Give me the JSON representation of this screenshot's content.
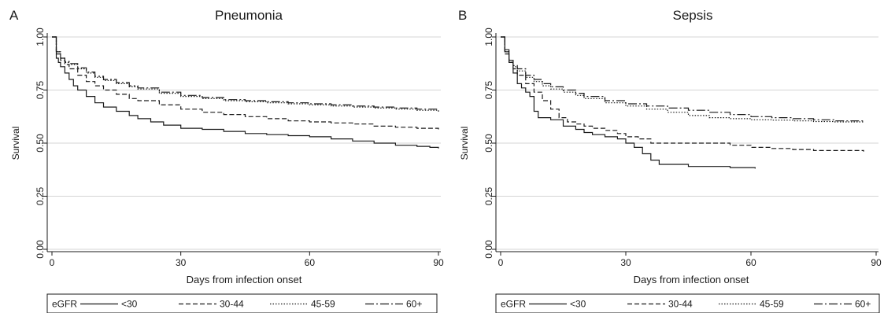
{
  "legend": {
    "title": "eGFR",
    "entries": [
      "<30",
      "30-44",
      "45-59",
      "60+"
    ],
    "dash_styles": [
      "solid",
      "dashed",
      "dotted",
      "longdash-dot"
    ]
  },
  "style": {
    "line_color": "#1a1a1a",
    "grid_color": "#d4d4d4",
    "background": "#ffffff"
  },
  "chart_data": [
    {
      "type": "line",
      "panel_letter": "A",
      "title": "Pneumonia",
      "xlabel": "Days from infection onset",
      "ylabel": "Survival",
      "xlim": [
        0,
        90
      ],
      "ylim": [
        0,
        1
      ],
      "xticks": [
        0,
        30,
        60,
        90
      ],
      "yticks": [
        0,
        0.25,
        0.5,
        0.75,
        1
      ],
      "ytick_labels": [
        "0.00",
        "0.25",
        "0.50",
        "0.75",
        "1.00"
      ],
      "grid": "horizontal",
      "legend_position": "bottom",
      "series": [
        {
          "name": "<30",
          "dash": "solid",
          "x": [
            0,
            1,
            1.5,
            2,
            3,
            4,
            5,
            6,
            8,
            10,
            12,
            15,
            18,
            20,
            23,
            26,
            30,
            35,
            40,
            45,
            50,
            55,
            60,
            65,
            70,
            75,
            80,
            85,
            88,
            90
          ],
          "y": [
            1.0,
            0.9,
            0.88,
            0.86,
            0.83,
            0.8,
            0.77,
            0.75,
            0.72,
            0.69,
            0.67,
            0.65,
            0.63,
            0.615,
            0.6,
            0.585,
            0.57,
            0.565,
            0.555,
            0.545,
            0.54,
            0.535,
            0.53,
            0.52,
            0.51,
            0.5,
            0.49,
            0.485,
            0.48,
            0.475
          ]
        },
        {
          "name": "30-44",
          "dash": "dashed",
          "x": [
            0,
            1,
            2,
            3,
            4,
            6,
            8,
            10,
            12,
            15,
            18,
            20,
            25,
            30,
            35,
            40,
            45,
            50,
            55,
            60,
            65,
            70,
            75,
            80,
            85,
            90
          ],
          "y": [
            1.0,
            0.92,
            0.89,
            0.87,
            0.85,
            0.82,
            0.79,
            0.77,
            0.75,
            0.73,
            0.71,
            0.7,
            0.68,
            0.66,
            0.645,
            0.635,
            0.625,
            0.615,
            0.605,
            0.6,
            0.595,
            0.59,
            0.58,
            0.575,
            0.57,
            0.565
          ]
        },
        {
          "name": "45-59",
          "dash": "dotted",
          "x": [
            0,
            1,
            2,
            3,
            4,
            6,
            8,
            10,
            12,
            15,
            18,
            20,
            25,
            30,
            35,
            40,
            45,
            50,
            55,
            60,
            65,
            70,
            75,
            80,
            85,
            90
          ],
          "y": [
            1.0,
            0.93,
            0.9,
            0.88,
            0.87,
            0.85,
            0.83,
            0.81,
            0.795,
            0.78,
            0.765,
            0.755,
            0.735,
            0.72,
            0.71,
            0.7,
            0.695,
            0.69,
            0.685,
            0.68,
            0.675,
            0.67,
            0.665,
            0.66,
            0.655,
            0.645
          ]
        },
        {
          "name": "60+",
          "dash": "longdash-dot",
          "x": [
            0,
            1,
            2,
            3,
            4,
            6,
            8,
            10,
            12,
            15,
            18,
            20,
            25,
            30,
            35,
            40,
            45,
            50,
            55,
            60,
            65,
            70,
            75,
            80,
            85,
            90
          ],
          "y": [
            1.0,
            0.93,
            0.9,
            0.885,
            0.875,
            0.855,
            0.835,
            0.815,
            0.8,
            0.785,
            0.77,
            0.76,
            0.74,
            0.725,
            0.715,
            0.705,
            0.7,
            0.695,
            0.69,
            0.685,
            0.68,
            0.675,
            0.67,
            0.665,
            0.66,
            0.655
          ]
        }
      ]
    },
    {
      "type": "line",
      "panel_letter": "B",
      "title": "Sepsis",
      "xlabel": "Days from infection onset",
      "ylabel": "Survival",
      "xlim": [
        0,
        90
      ],
      "ylim": [
        0,
        1
      ],
      "xticks": [
        0,
        30,
        60,
        90
      ],
      "yticks": [
        0,
        0.25,
        0.5,
        0.75,
        1
      ],
      "ytick_labels": [
        "0.00",
        "0.25",
        "0.50",
        "0.75",
        "1.00"
      ],
      "grid": "horizontal",
      "legend_position": "bottom",
      "series": [
        {
          "name": "<30",
          "dash": "solid",
          "x": [
            0,
            1,
            2,
            3,
            4,
            5,
            6,
            7,
            8,
            9,
            12,
            15,
            18,
            20,
            22,
            25,
            28,
            30,
            32,
            34,
            36,
            38,
            40,
            45,
            50,
            55,
            61
          ],
          "y": [
            1.0,
            0.93,
            0.88,
            0.83,
            0.78,
            0.76,
            0.74,
            0.72,
            0.65,
            0.62,
            0.61,
            0.58,
            0.565,
            0.55,
            0.54,
            0.53,
            0.52,
            0.5,
            0.48,
            0.45,
            0.42,
            0.4,
            0.4,
            0.39,
            0.39,
            0.385,
            0.38
          ]
        },
        {
          "name": "30-44",
          "dash": "dashed",
          "x": [
            0,
            1,
            2,
            3,
            4,
            6,
            8,
            10,
            12,
            14,
            16,
            18,
            20,
            22,
            25,
            28,
            30,
            33,
            36,
            40,
            45,
            50,
            55,
            60,
            65,
            70,
            75,
            80,
            87
          ],
          "y": [
            1.0,
            0.92,
            0.88,
            0.85,
            0.82,
            0.78,
            0.74,
            0.7,
            0.66,
            0.62,
            0.6,
            0.59,
            0.58,
            0.57,
            0.56,
            0.545,
            0.53,
            0.52,
            0.5,
            0.5,
            0.5,
            0.5,
            0.49,
            0.48,
            0.475,
            0.47,
            0.465,
            0.465,
            0.46
          ]
        },
        {
          "name": "45-59",
          "dash": "dotted",
          "x": [
            0,
            1,
            2,
            3,
            4,
            6,
            8,
            10,
            12,
            15,
            18,
            20,
            25,
            30,
            35,
            40,
            45,
            50,
            55,
            60,
            65,
            70,
            75,
            80,
            87
          ],
          "y": [
            1.0,
            0.93,
            0.88,
            0.86,
            0.84,
            0.81,
            0.79,
            0.77,
            0.755,
            0.74,
            0.725,
            0.71,
            0.69,
            0.675,
            0.66,
            0.645,
            0.63,
            0.62,
            0.615,
            0.61,
            0.608,
            0.605,
            0.602,
            0.6,
            0.598
          ]
        },
        {
          "name": "60+",
          "dash": "longdash-dot",
          "x": [
            0,
            1,
            2,
            3,
            4,
            6,
            8,
            10,
            12,
            15,
            18,
            20,
            25,
            30,
            35,
            40,
            45,
            50,
            55,
            60,
            65,
            70,
            75,
            80,
            87
          ],
          "y": [
            1.0,
            0.94,
            0.89,
            0.865,
            0.85,
            0.82,
            0.8,
            0.78,
            0.765,
            0.75,
            0.735,
            0.72,
            0.7,
            0.685,
            0.675,
            0.665,
            0.655,
            0.645,
            0.635,
            0.625,
            0.62,
            0.615,
            0.61,
            0.605,
            0.6
          ]
        }
      ]
    }
  ]
}
